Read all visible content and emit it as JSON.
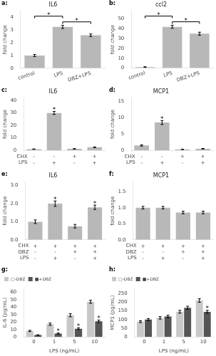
{
  "chart_data": [
    {
      "type": "bar",
      "title": "IL6",
      "categories": [
        "control",
        "LPS",
        "DBZ+LPS"
      ],
      "values": [
        1.0,
        3.25,
        2.6
      ],
      "errors": [
        0.08,
        0.12,
        0.1
      ],
      "ylabel": "fold change",
      "ylim": [
        0,
        4.5
      ],
      "yticks": [
        0,
        1,
        2,
        3,
        4
      ],
      "color": "#b8b8b8",
      "grid": false,
      "annotations": [
        {
          "text": "a:"
        },
        {
          "text": "*",
          "between": [
            "control",
            "LPS"
          ]
        },
        {
          "text": "*",
          "between": [
            "LPS",
            "DBZ+LPS"
          ]
        }
      ]
    },
    {
      "type": "bar",
      "title": "ccl2",
      "categories": [
        "control",
        "LPS",
        "DBZ+LPS"
      ],
      "values": [
        1.0,
        42.0,
        35.0
      ],
      "errors": [
        0.3,
        1.5,
        1.5
      ],
      "ylabel": "fold change",
      "ylim": [
        0,
        58
      ],
      "yticks": [
        0,
        10,
        20,
        30,
        40,
        50
      ],
      "color": "#b8b8b8",
      "grid": false,
      "annotations": [
        {
          "text": "b:"
        },
        {
          "text": "*",
          "between": [
            "control",
            "LPS"
          ]
        },
        {
          "text": "*",
          "between": [
            "LPS",
            "DBZ+LPS"
          ]
        }
      ]
    },
    {
      "type": "bar",
      "title": "IL6",
      "categories": [
        [
          "-",
          "-"
        ],
        [
          "-",
          "+"
        ],
        [
          "+",
          "-"
        ],
        [
          "+",
          "+"
        ]
      ],
      "values": [
        1.0,
        30.0,
        1.2,
        2.5
      ],
      "errors": [
        0.15,
        1.2,
        0.2,
        0.3
      ],
      "ylabel": "fold change",
      "ylim": [
        0,
        42
      ],
      "yticks": [
        0,
        10,
        20,
        30,
        40
      ],
      "color": "#b8b8b8",
      "grid": false,
      "annotations": [
        {
          "text": "c:"
        },
        {
          "text": "*",
          "bar": 1
        },
        {
          "text": "CHX",
          "row": 0
        },
        {
          "text": "LPS",
          "row": 1
        }
      ]
    },
    {
      "type": "bar",
      "title": "MCP1",
      "categories": [
        [
          "-",
          "-"
        ],
        [
          "-",
          "+"
        ],
        [
          "+",
          "-"
        ],
        [
          "+",
          "+"
        ]
      ],
      "values": [
        1.5,
        8.5,
        0.3,
        0.5
      ],
      "errors": [
        0.2,
        0.6,
        0.05,
        0.08
      ],
      "ylabel": "fold change",
      "ylim": [
        0,
        16
      ],
      "yticks": [
        0,
        5,
        10,
        15
      ],
      "color": "#b8b8b8",
      "grid": false,
      "annotations": [
        {
          "text": "d:"
        },
        {
          "text": "*",
          "bar": 1
        },
        {
          "text": "CHX",
          "row": 0
        },
        {
          "text": "LPS",
          "row": 1
        }
      ]
    },
    {
      "type": "bar",
      "title": "IL6",
      "categories": [
        [
          "+",
          "-",
          "-"
        ],
        [
          "+",
          "-",
          "+"
        ],
        [
          "+",
          "+",
          "-"
        ],
        [
          "+",
          "+",
          "+"
        ]
      ],
      "values": [
        1.0,
        2.0,
        0.75,
        1.8
      ],
      "errors": [
        0.1,
        0.15,
        0.1,
        0.12
      ],
      "ylabel": "fold change",
      "ylim": [
        0,
        3.2
      ],
      "yticks": [
        {
          "value": 0,
          "label": "0.0"
        },
        {
          "value": 1,
          "label": "1.0"
        },
        {
          "value": 2,
          "label": "2.0"
        },
        {
          "value": 3,
          "label": "3.0"
        }
      ],
      "color": "#b8b8b8",
      "grid": false,
      "annotations": [
        {
          "text": "e:"
        },
        {
          "text": "*",
          "bar": 1
        },
        {
          "text": "*",
          "bar": 3
        },
        {
          "text": "CHX",
          "row": 0
        },
        {
          "text": "DBZ",
          "row": 1
        },
        {
          "text": "LPS",
          "row": 2
        }
      ]
    },
    {
      "type": "bar",
      "title": "MCP1",
      "categories": [
        [
          "+",
          "-",
          "-"
        ],
        [
          "+",
          "-",
          "+"
        ],
        [
          "+",
          "+",
          "-"
        ],
        [
          "+",
          "+",
          "+"
        ]
      ],
      "values": [
        1.0,
        1.0,
        0.85,
        0.85
      ],
      "errors": [
        0.04,
        0.04,
        0.04,
        0.04
      ],
      "ylabel": "fold change",
      "ylim": [
        0,
        1.8
      ],
      "yticks": [
        {
          "value": 0,
          "label": "0.0"
        },
        0.5,
        {
          "value": 1,
          "label": "1.0"
        },
        1.5
      ],
      "color": "#b8b8b8",
      "grid": false,
      "annotations": [
        {
          "text": "f:"
        },
        {
          "text": "CHX",
          "row": 0
        },
        {
          "text": "DBZ",
          "row": 1
        },
        {
          "text": "LPS",
          "row": 2
        }
      ]
    },
    {
      "type": "bar",
      "categories": [
        "0",
        "1",
        "5",
        "10"
      ],
      "xlabel": "LPS (ng/mL)",
      "ylabel": "IL-6 (pg/mL)",
      "series": [
        {
          "name": "□-DBZ",
          "color": "#c8c8c8",
          "values": [
            8.0,
            17.0,
            29.0,
            47.0
          ],
          "errors": [
            0.8,
            1.5,
            2.0,
            2.0
          ]
        },
        {
          "name": "■+DBZ",
          "color": "#555555",
          "values": [
            2.5,
            4.5,
            11.0,
            21.0
          ],
          "errors": [
            0.4,
            0.7,
            1.2,
            1.5
          ]
        }
      ],
      "ylim": [
        0,
        65
      ],
      "yticks": [
        0,
        10,
        20,
        30,
        40,
        50,
        60
      ],
      "legend": "upper left",
      "grid": false,
      "annotations": [
        {
          "text": "g:"
        },
        {
          "text": "*",
          "series": "■+DBZ",
          "bar": 1
        },
        {
          "text": "*",
          "series": "■+DBZ",
          "bar": 2
        },
        {
          "text": "*",
          "series": "■+DBZ",
          "bar": 3
        }
      ]
    },
    {
      "type": "bar",
      "categories": [
        "0",
        "1",
        "5",
        "10"
      ],
      "xlabel": "LPS (ng/mL)",
      "ylabel": "MCP1 (pg/mL)",
      "series": [
        {
          "name": "□-DBZ",
          "color": "#c8c8c8",
          "values": [
            88.0,
            110.0,
            145.0,
            210.0
          ],
          "errors": [
            5.0,
            7.0,
            8.0,
            10.0
          ]
        },
        {
          "name": "■+DBZ",
          "color": "#555555",
          "values": [
            100.0,
            118.0,
            168.0,
            145.0
          ],
          "errors": [
            6.0,
            7.0,
            9.0,
            8.0
          ]
        }
      ],
      "ylim": [
        0,
        280
      ],
      "yticks": [
        0,
        50,
        100,
        150,
        200,
        250
      ],
      "legend": "upper left",
      "grid": false,
      "annotations": [
        {
          "text": "h:"
        },
        {
          "text": "*",
          "series": "■+DBZ",
          "bar": 3
        }
      ]
    }
  ]
}
